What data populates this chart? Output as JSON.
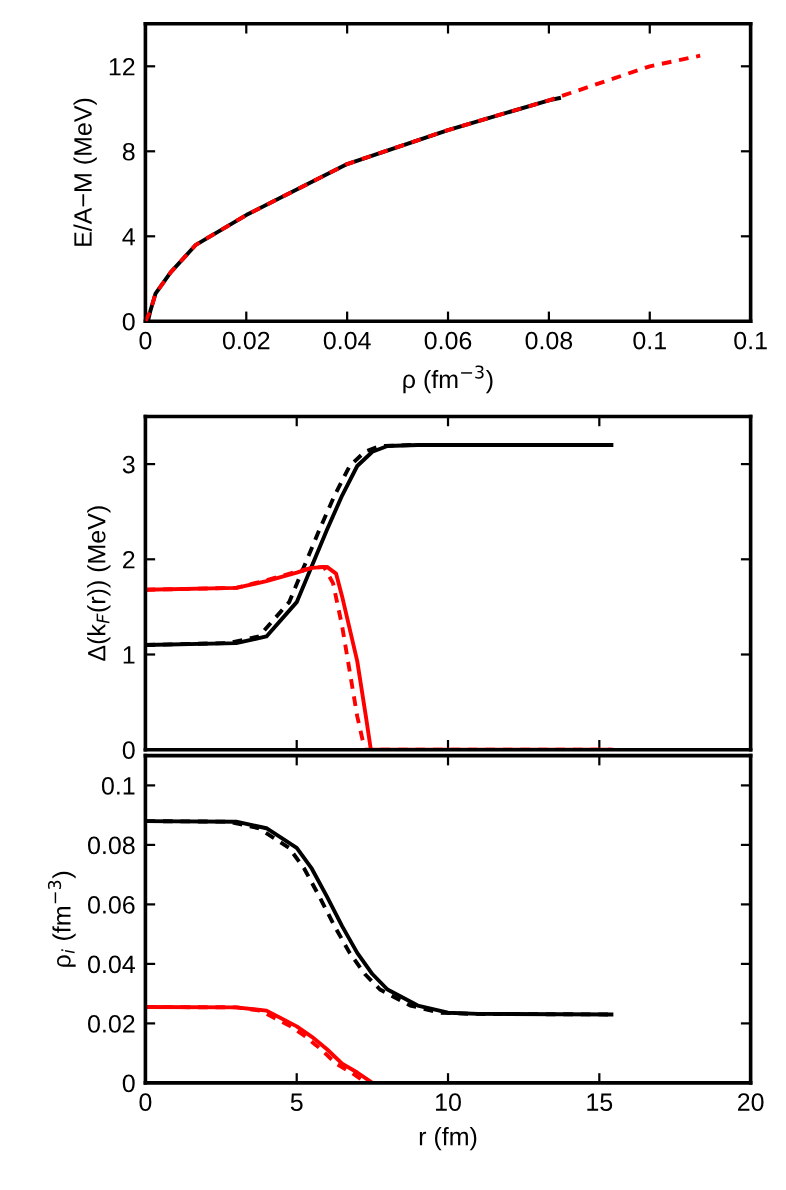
{
  "chart_data": [
    {
      "type": "line",
      "xlabel": "ρ (fm$^{−3}$)",
      "ylabel": "E/A−M (MeV)",
      "xlim": [
        0,
        0.12
      ],
      "ylim": [
        0,
        14
      ],
      "xticks": [
        0,
        0.02,
        0.04,
        0.06,
        0.08,
        0.1,
        {
          "value": 0.12,
          "label": "0.1"
        }
      ],
      "yticks": [
        0,
        4,
        8,
        12
      ],
      "grid": false,
      "legend": false,
      "marker": "none",
      "series": [
        {
          "color": "#ff0000",
          "line_style": "dashed",
          "x": [
            0,
            0.001,
            0.002,
            0.005,
            0.01,
            0.02,
            0.04,
            0.06,
            0.08,
            0.1,
            0.11
          ],
          "values": [
            0,
            0.5,
            1.3,
            2.3,
            3.6,
            5.0,
            7.4,
            9.0,
            10.4,
            12.0,
            12.5
          ]
        },
        {
          "color": "#000000",
          "line_style": "solid",
          "x": [
            0.0005,
            0.001,
            0.002,
            0.005,
            0.01,
            0.02,
            0.04,
            0.06,
            0.08,
            0.082
          ],
          "values": [
            0,
            0.5,
            1.3,
            2.3,
            3.6,
            5.0,
            7.4,
            9.0,
            10.4,
            10.5
          ]
        }
      ]
    },
    {
      "type": "line",
      "ylabel": "Δ(k$_{F}$(r)) (MeV)",
      "xlim": [
        0,
        20
      ],
      "ylim": [
        0,
        3.5
      ],
      "xticks": [
        0,
        5,
        10,
        15,
        20
      ],
      "yticks": [
        0,
        1,
        2,
        3
      ],
      "tick_labels": "y",
      "grid": false,
      "legend": false,
      "marker": "none",
      "series": [
        {
          "color": "#000000",
          "line_style": "solid",
          "x": [
            0,
            3,
            4,
            5,
            5.5,
            6,
            6.5,
            7,
            7.5,
            8,
            9,
            10,
            15.4
          ],
          "values": [
            1.1,
            1.12,
            1.19,
            1.55,
            1.93,
            2.31,
            2.67,
            2.98,
            3.13,
            3.19,
            3.2,
            3.2,
            3.2
          ]
        },
        {
          "color": "#000000",
          "line_style": "dashed",
          "x": [
            0,
            2.75,
            3.75,
            4.75,
            5.25,
            5.75,
            6.25,
            6.75,
            7.25,
            7.75,
            8.75,
            9.75,
            15.4
          ],
          "values": [
            1.1,
            1.12,
            1.19,
            1.55,
            1.93,
            2.31,
            2.67,
            2.98,
            3.13,
            3.19,
            3.2,
            3.2,
            3.2
          ]
        },
        {
          "color": "#ff0000",
          "line_style": "solid",
          "x": [
            0,
            3,
            4,
            5,
            5.5,
            6,
            6.3,
            6.5,
            7,
            7.3,
            7.45,
            15.4
          ],
          "values": [
            1.68,
            1.7,
            1.77,
            1.86,
            1.91,
            1.92,
            1.85,
            1.61,
            0.93,
            0.32,
            0,
            0
          ]
        },
        {
          "color": "#ff0000",
          "line_style": "dashed",
          "x": [
            0,
            3,
            4,
            5,
            5.5,
            5.9,
            6.2,
            6.5,
            7,
            7.25,
            15.4
          ],
          "values": [
            1.68,
            1.7,
            1.78,
            1.87,
            1.91,
            1.92,
            1.75,
            1.3,
            0.35,
            0,
            0
          ]
        }
      ]
    },
    {
      "type": "line",
      "xlabel": "r (fm)",
      "ylabel": "ρ$_{i}$ (fm$^{−3}$)",
      "xlim": [
        0,
        20
      ],
      "ylim": [
        0,
        0.11
      ],
      "xticks": [
        0,
        5,
        10,
        15,
        20
      ],
      "yticks": [
        0,
        0.02,
        0.04,
        0.06,
        0.08,
        0.1
      ],
      "grid": false,
      "legend": false,
      "marker": "none",
      "series": [
        {
          "color": "#000000",
          "line_style": "solid",
          "x": [
            0,
            3,
            4,
            5,
            5.5,
            6,
            6.5,
            7,
            7.5,
            8,
            9,
            10,
            11,
            15.4
          ],
          "values": [
            0.088,
            0.0878,
            0.0856,
            0.079,
            0.072,
            0.0626,
            0.0527,
            0.0437,
            0.0366,
            0.0314,
            0.026,
            0.0236,
            0.0232,
            0.023
          ]
        },
        {
          "color": "#000000",
          "line_style": "dashed",
          "x": [
            0,
            2.75,
            3.75,
            4.75,
            5.25,
            5.75,
            6.25,
            6.75,
            7.25,
            7.75,
            8.75,
            9.75,
            10.75,
            15.4
          ],
          "values": [
            0.088,
            0.0878,
            0.0856,
            0.079,
            0.072,
            0.0626,
            0.0527,
            0.0437,
            0.0366,
            0.0314,
            0.026,
            0.0236,
            0.0232,
            0.023
          ]
        },
        {
          "color": "#ff0000",
          "line_style": "solid",
          "x": [
            0,
            3,
            4,
            5,
            5.5,
            6,
            6.5,
            7,
            7.5,
            15.4
          ],
          "values": [
            0.0255,
            0.0254,
            0.0243,
            0.019,
            0.0155,
            0.0113,
            0.0065,
            0.0035,
            0,
            0
          ]
        },
        {
          "color": "#ff0000",
          "line_style": "dashed",
          "x": [
            0,
            3,
            3.8,
            4.8,
            5.3,
            5.8,
            6.3,
            6.8,
            7.3,
            15.4
          ],
          "values": [
            0.0255,
            0.0254,
            0.0243,
            0.019,
            0.0155,
            0.0113,
            0.0065,
            0.0035,
            0,
            0
          ]
        }
      ]
    }
  ]
}
